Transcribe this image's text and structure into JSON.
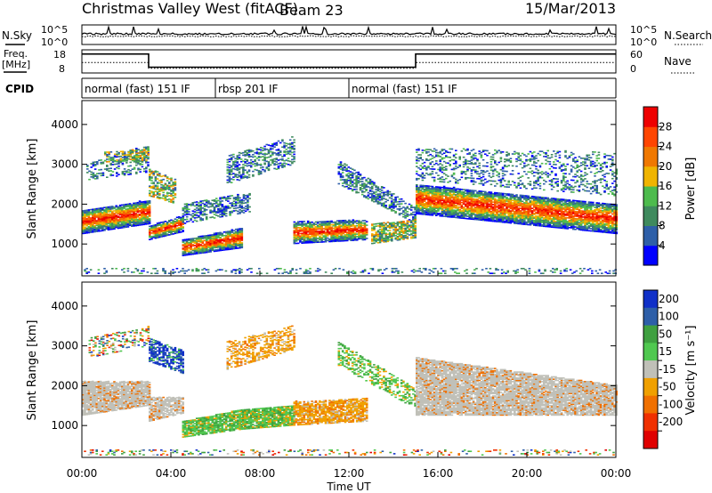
{
  "header": {
    "title": "Christmas Valley West (fitACF)",
    "beam": "Beam 23",
    "date": "15/Mar/2013"
  },
  "labels": {
    "nsky": "N.Sky",
    "nsearch": "N.Search",
    "freq_line1": "Freq.",
    "freq_line2": "[MHz]",
    "nave": "Nave",
    "cpid": "CPID",
    "power_axis": "Power [dB]",
    "velocity_axis": "Velocity [m s⁻¹]",
    "slant_range": "Slant Range [km]",
    "time_axis": "Time UT"
  },
  "colors": {
    "power": [
      "#0000ff",
      "#2e5fa8",
      "#3f8a5e",
      "#4dbb4d",
      "#f0b400",
      "#f07800",
      "#ff4500",
      "#ee0000"
    ],
    "velocity": [
      "#1030c8",
      "#2e5fa8",
      "#3fa040",
      "#50c850",
      "#c0c0b8",
      "#f0a000",
      "#f07000",
      "#f03000",
      "#e00000"
    ]
  },
  "chart_data": [
    {
      "type": "line",
      "name": "noise",
      "left_axis": {
        "label": "N.Sky",
        "ticks": [
          "10^5",
          "10^0"
        ]
      },
      "right_axis": {
        "label": "N.Search",
        "ticks": [
          "10^5",
          "10^0"
        ]
      },
      "xlim": [
        0,
        24
      ]
    },
    {
      "type": "line",
      "name": "frequency-nave",
      "left_axis": {
        "label": "Freq. [MHz]",
        "ticks": [
          18,
          8
        ]
      },
      "right_axis": {
        "label": "Nave",
        "ticks": [
          60,
          0
        ]
      },
      "frequency_steps": [
        {
          "start": 0,
          "end": 3.0,
          "level": 0.18
        },
        {
          "start": 3.0,
          "end": 15.0,
          "level": 0.75
        },
        {
          "start": 15.0,
          "end": 24,
          "level": 0.18
        }
      ],
      "nave_steps": [
        {
          "start": 0,
          "end": 3.0,
          "level": 0.55
        },
        {
          "start": 3.0,
          "end": 15.0,
          "level": 0.8
        },
        {
          "start": 15.0,
          "end": 24,
          "level": 0.55
        }
      ]
    },
    {
      "type": "timeline",
      "name": "cpid",
      "segments": [
        {
          "start": 0,
          "end": 6.0,
          "label": "normal (fast) 151 IF"
        },
        {
          "start": 6.0,
          "end": 12.0,
          "label": "rbsp 201 IF"
        },
        {
          "start": 12.0,
          "end": 24,
          "label": "normal (fast) 151 IF"
        }
      ]
    },
    {
      "type": "heatmap",
      "name": "power",
      "xlabel": "",
      "ylabel": "Slant Range [km]",
      "yticks": [
        1000,
        2000,
        3000,
        4000
      ],
      "ylim": [
        200,
        4600
      ],
      "xlim": [
        0,
        24
      ],
      "colorbar": {
        "label": "Power [dB]",
        "ticks": [
          4,
          8,
          12,
          16,
          20,
          24,
          28
        ],
        "range": [
          0,
          32
        ]
      }
    },
    {
      "type": "heatmap",
      "name": "velocity",
      "xlabel": "Time UT",
      "ylabel": "Slant Range [km]",
      "yticks": [
        1000,
        2000,
        3000,
        4000
      ],
      "ylim": [
        200,
        4600
      ],
      "xlim": [
        0,
        24
      ],
      "xticks": [
        "00:00",
        "04:00",
        "08:00",
        "12:00",
        "16:00",
        "20:00",
        "00:00"
      ],
      "colorbar": {
        "label": "Velocity [m s⁻¹]",
        "ticks": [
          200,
          100,
          50,
          15,
          -15,
          -50,
          -100,
          -200
        ]
      }
    }
  ]
}
